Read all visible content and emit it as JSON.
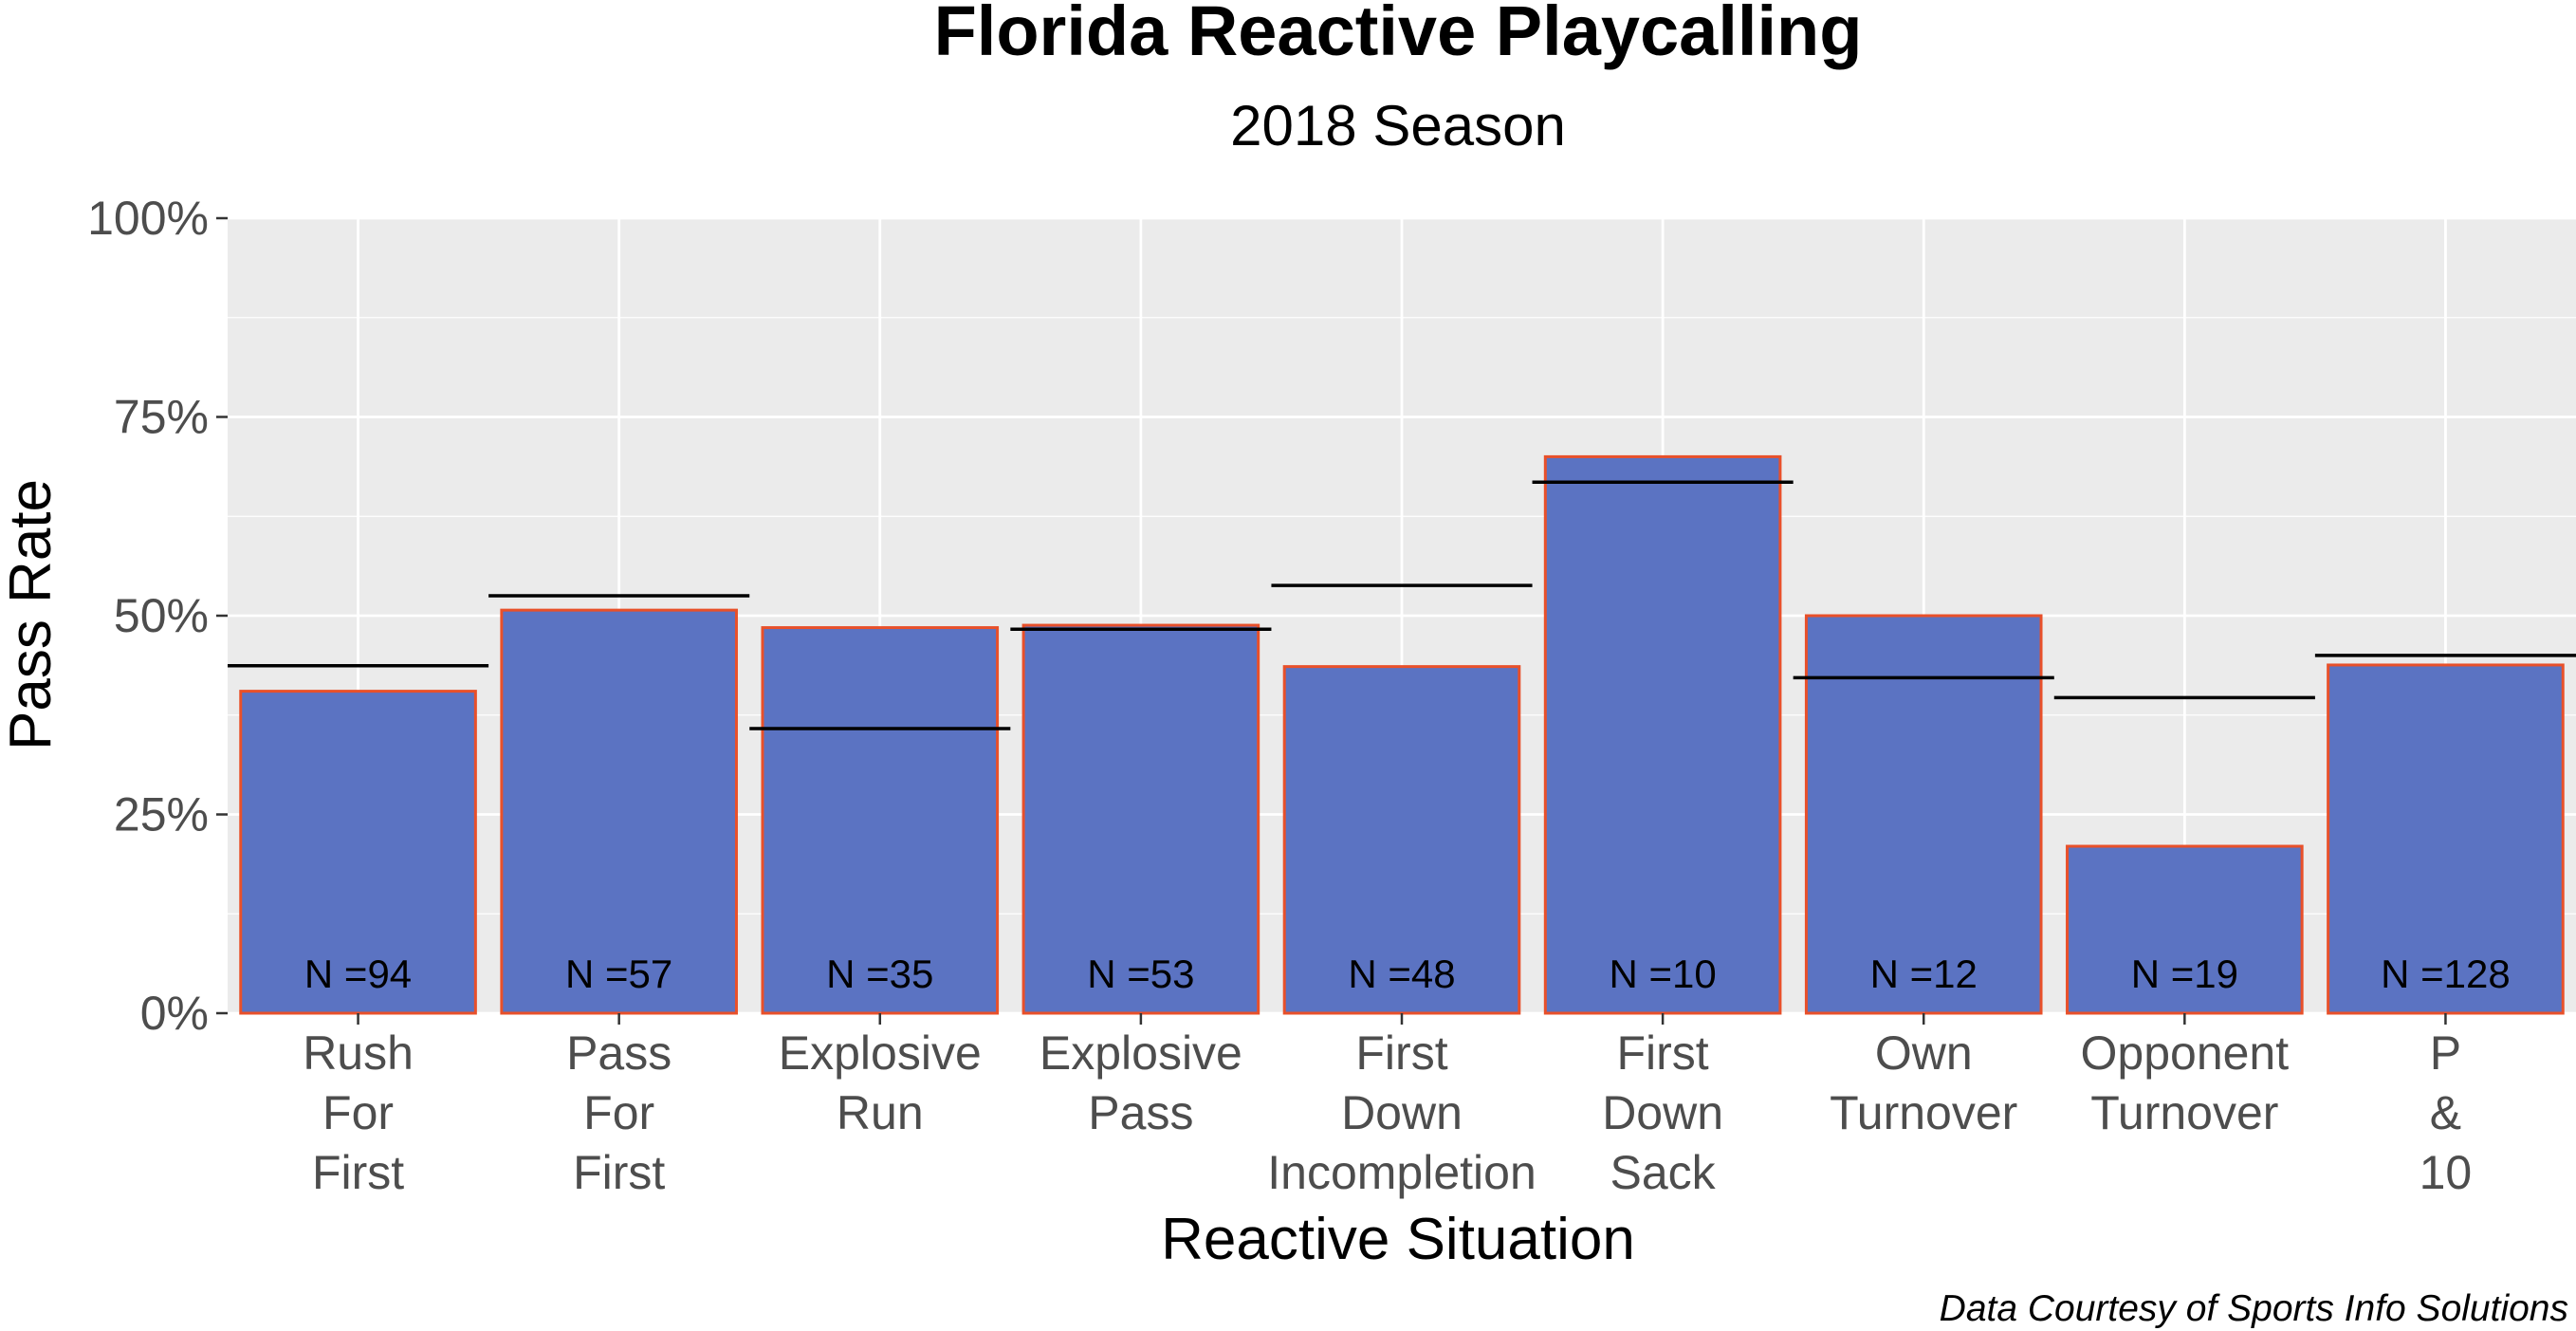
{
  "chart_data": {
    "type": "bar",
    "title": "Florida Reactive Playcalling",
    "subtitle": "2018 Season",
    "xlabel": "Reactive Situation",
    "ylabel": "Pass Rate",
    "caption": "Data Courtesy of Sports Info Solutions",
    "ylim": [
      0,
      1
    ],
    "yticks": [
      {
        "value": 0,
        "label": "0%"
      },
      {
        "value": 0.25,
        "label": "25%"
      },
      {
        "value": 0.5,
        "label": "50%"
      },
      {
        "value": 0.75,
        "label": "75%"
      },
      {
        "value": 1,
        "label": "100%"
      }
    ],
    "categories": [
      [
        "Rush",
        "For",
        "First"
      ],
      [
        "Pass",
        "For",
        "First"
      ],
      [
        "Explosive",
        "Run"
      ],
      [
        "Explosive",
        "Pass"
      ],
      [
        "First",
        "Down",
        "Incompletion"
      ],
      [
        "First",
        "Down",
        "Sack"
      ],
      [
        "Own",
        "Turnover"
      ],
      [
        "Opponent",
        "Turnover"
      ],
      [
        "P",
        "&",
        "10"
      ]
    ],
    "values": [
      0.405,
      0.507,
      0.485,
      0.488,
      0.436,
      0.7,
      0.5,
      0.21,
      0.438
    ],
    "reference_values": [
      0.437,
      0.525,
      0.358,
      0.483,
      0.538,
      0.668,
      0.422,
      0.397,
      0.45
    ],
    "n_labels": [
      "N =94",
      "N =57",
      "N =35",
      "N =53",
      "N =48",
      "N =10",
      "N =12",
      "N =19",
      "N =128"
    ],
    "grid": true,
    "colors": {
      "bar_fill": "#5b73c2",
      "bar_outline": "#e8502a",
      "panel_background": "#ebebeb",
      "gridline": "#ffffff",
      "reference_line": "#000000"
    }
  }
}
